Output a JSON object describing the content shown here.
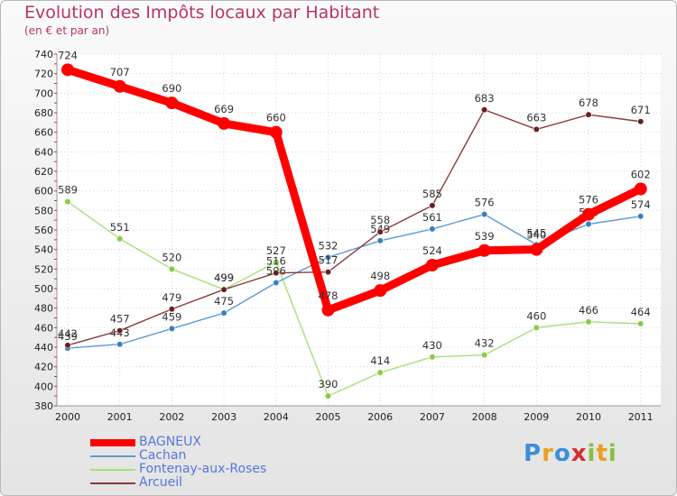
{
  "header": {
    "title": "Evolution des Impôts locaux par Habitant",
    "subtitle": "(en € et par an)"
  },
  "chart_data": {
    "type": "line",
    "title": "Evolution des Impôts locaux par Habitant",
    "subtitle": "(en € et par an)",
    "x": [
      "2000",
      "2001",
      "2002",
      "2003",
      "2004",
      "2005",
      "2006",
      "2007",
      "2008",
      "2009",
      "2010",
      "2011"
    ],
    "yticks": [
      380,
      400,
      420,
      440,
      460,
      480,
      500,
      520,
      540,
      560,
      580,
      600,
      620,
      640,
      660,
      680,
      700,
      720,
      740
    ],
    "ylim": [
      380,
      740
    ],
    "grid": "dotted",
    "series": [
      {
        "name": "Fontenay-aux-Roses",
        "color": "#a6e07a",
        "dot": "#88cc44",
        "values": [
          589,
          551,
          520,
          499,
          527,
          390,
          414,
          430,
          432,
          460,
          466,
          464
        ]
      },
      {
        "name": "Cachan",
        "color": "#5b9bd5",
        "dot": "#3a7fc0",
        "values": [
          439,
          443,
          459,
          475,
          506,
          532,
          549,
          561,
          576,
          545,
          566,
          574
        ]
      },
      {
        "name": "Arcueil",
        "color": "#8a3a3a",
        "dot": "#6b1f1f",
        "values": [
          442,
          457,
          479,
          499,
          516,
          517,
          558,
          585,
          683,
          663,
          678,
          671
        ]
      },
      {
        "name": "BAGNEUX",
        "color": "#ff0000",
        "dot": "#ff0000",
        "values": [
          724,
          707,
          690,
          669,
          660,
          478,
          498,
          524,
          539,
          540,
          576,
          602
        ]
      }
    ],
    "legend_position": "bottom-left"
  },
  "legend": {
    "items": [
      {
        "label": "BAGNEUX",
        "color": "#ff0000",
        "thickness": 8
      },
      {
        "label": "Cachan",
        "color": "#5b9bd5",
        "thickness": 2
      },
      {
        "label": "Fontenay-aux-Roses",
        "color": "#a6e07a",
        "thickness": 2
      },
      {
        "label": "Arcueil",
        "color": "#8a3a3a",
        "thickness": 2
      }
    ]
  },
  "logo": {
    "letters": [
      {
        "ch": "P",
        "color": "#3a8fd8"
      },
      {
        "ch": "r",
        "color": "#e8a020"
      },
      {
        "ch": "o",
        "color": "#3a8fd8"
      },
      {
        "ch": "x",
        "color": "#d03030"
      },
      {
        "ch": "i",
        "color": "#88c040"
      },
      {
        "ch": "t",
        "color": "#e8a020"
      },
      {
        "ch": "i",
        "color": "#88c040"
      }
    ]
  }
}
